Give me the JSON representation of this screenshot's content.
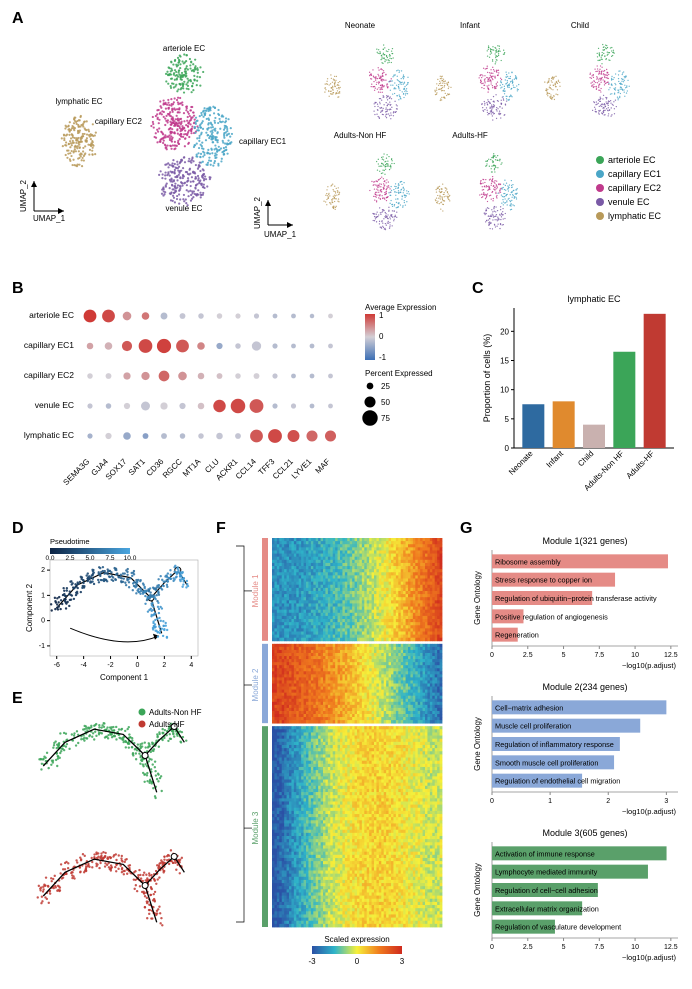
{
  "panelLabels": {
    "A": "A",
    "B": "B",
    "C": "C",
    "D": "D",
    "E": "E",
    "F": "F",
    "G": "G"
  },
  "celltypes": {
    "arteriole": {
      "name": "arteriole EC",
      "color": "#3ba558"
    },
    "capillary1": {
      "name": "capillary EC1",
      "color": "#4aa6c7"
    },
    "capillary2": {
      "name": "capillary EC2",
      "color": "#c03a8c"
    },
    "venule": {
      "name": "venule EC",
      "color": "#7a5aa6"
    },
    "lymphatic": {
      "name": "lymphatic EC",
      "color": "#b89a5a"
    }
  },
  "umap": {
    "x": "UMAP_1",
    "y": "UMAP_2"
  },
  "groups": {
    "neonate": {
      "name": "Neonate",
      "color": "#2e6aa0"
    },
    "infant": {
      "name": "Infant",
      "color": "#e08a2e"
    },
    "child": {
      "name": "Child",
      "color": "#c9b1af"
    },
    "nonhf": {
      "name": "Adults-Non HF",
      "color": "#3ba558"
    },
    "hf": {
      "name": "Adults-HF",
      "color": "#c03a32"
    }
  },
  "panelA": {
    "smallTitles": [
      "Neonate",
      "Infant",
      "Child",
      "Adults-Non HF",
      "Adults-HF"
    ]
  },
  "panelB": {
    "rows": [
      "arteriole EC",
      "capillary EC1",
      "capillary EC2",
      "venule EC",
      "lymphatic EC"
    ],
    "genes": [
      "SEMA3G",
      "GJA4",
      "SOX17",
      "SAT1",
      "CD36",
      "RGCC",
      "MT1A",
      "CLU",
      "ACKR1",
      "CCL14",
      "TFF3",
      "CCL21",
      "LYVE1",
      "MAF"
    ],
    "avgExpr": {
      "title": "Average Expression",
      "max": 1,
      "mid": 0,
      "min": -1,
      "high": "#cf3a36",
      "midc": "#d3cfd6",
      "low": "#3c6fb5"
    },
    "pctExpr": {
      "title": "Percent Expressed",
      "sizes": [
        25,
        50,
        75
      ]
    },
    "data": [
      [
        {
          "p": 60,
          "e": 1.0
        },
        {
          "p": 60,
          "e": 0.9
        },
        {
          "p": 36,
          "e": 0.4
        },
        {
          "p": 30,
          "e": 0.6
        },
        {
          "p": 26,
          "e": -0.2
        },
        {
          "p": 20,
          "e": -0.1
        },
        {
          "p": 18,
          "e": -0.1
        },
        {
          "p": 18,
          "e": 0.0
        },
        {
          "p": 16,
          "e": 0.0
        },
        {
          "p": 16,
          "e": -0.1
        },
        {
          "p": 14,
          "e": -0.2
        },
        {
          "p": 14,
          "e": -0.2
        },
        {
          "p": 12,
          "e": -0.2
        },
        {
          "p": 14,
          "e": 0.0
        }
      ],
      [
        {
          "p": 24,
          "e": 0.3
        },
        {
          "p": 30,
          "e": 0.2
        },
        {
          "p": 45,
          "e": 0.8
        },
        {
          "p": 65,
          "e": 0.9
        },
        {
          "p": 68,
          "e": 0.95
        },
        {
          "p": 60,
          "e": 0.8
        },
        {
          "p": 30,
          "e": 0.5
        },
        {
          "p": 22,
          "e": -0.4
        },
        {
          "p": 18,
          "e": -0.1
        },
        {
          "p": 40,
          "e": -0.1
        },
        {
          "p": 16,
          "e": -0.2
        },
        {
          "p": 14,
          "e": -0.2
        },
        {
          "p": 14,
          "e": -0.2
        },
        {
          "p": 14,
          "e": -0.1
        }
      ],
      [
        {
          "p": 18,
          "e": 0.0
        },
        {
          "p": 20,
          "e": 0.0
        },
        {
          "p": 28,
          "e": 0.3
        },
        {
          "p": 34,
          "e": 0.4
        },
        {
          "p": 48,
          "e": 0.7
        },
        {
          "p": 36,
          "e": 0.4
        },
        {
          "p": 24,
          "e": 0.2
        },
        {
          "p": 20,
          "e": 0.1
        },
        {
          "p": 18,
          "e": 0.0
        },
        {
          "p": 20,
          "e": 0.0
        },
        {
          "p": 16,
          "e": -0.1
        },
        {
          "p": 14,
          "e": -0.2
        },
        {
          "p": 14,
          "e": -0.2
        },
        {
          "p": 14,
          "e": -0.1
        }
      ],
      [
        {
          "p": 16,
          "e": -0.1
        },
        {
          "p": 18,
          "e": -0.2
        },
        {
          "p": 22,
          "e": 0.0
        },
        {
          "p": 38,
          "e": -0.1
        },
        {
          "p": 28,
          "e": 0.0
        },
        {
          "p": 22,
          "e": -0.1
        },
        {
          "p": 24,
          "e": 0.1
        },
        {
          "p": 58,
          "e": 0.9
        },
        {
          "p": 70,
          "e": 0.9
        },
        {
          "p": 66,
          "e": 0.8
        },
        {
          "p": 16,
          "e": -0.2
        },
        {
          "p": 16,
          "e": -0.1
        },
        {
          "p": 14,
          "e": -0.2
        },
        {
          "p": 14,
          "e": -0.1
        }
      ],
      [
        {
          "p": 16,
          "e": -0.3
        },
        {
          "p": 22,
          "e": 0.0
        },
        {
          "p": 30,
          "e": -0.4
        },
        {
          "p": 20,
          "e": -0.5
        },
        {
          "p": 20,
          "e": -0.2
        },
        {
          "p": 18,
          "e": -0.2
        },
        {
          "p": 18,
          "e": -0.1
        },
        {
          "p": 24,
          "e": -0.1
        },
        {
          "p": 20,
          "e": -0.1
        },
        {
          "p": 60,
          "e": 0.8
        },
        {
          "p": 66,
          "e": 0.9
        },
        {
          "p": 55,
          "e": 0.85
        },
        {
          "p": 50,
          "e": 0.7
        },
        {
          "p": 50,
          "e": 0.75
        }
      ]
    ]
  },
  "panelC": {
    "title": "lymphatic EC",
    "yLabel": "Proportion of cells (%)",
    "yMax": 24,
    "yTicks": [
      0,
      5,
      10,
      15,
      20
    ],
    "bars": [
      {
        "label": "Neonate",
        "value": 7.5,
        "color": "#2e6aa0"
      },
      {
        "label": "Infant",
        "value": 8.0,
        "color": "#e08a2e"
      },
      {
        "label": "Child",
        "value": 4.0,
        "color": "#c9b1af"
      },
      {
        "label": "Adults-Non HF",
        "value": 16.5,
        "color": "#3ba558"
      },
      {
        "label": "Adults-HF",
        "value": 23.0,
        "color": "#c03a32"
      }
    ]
  },
  "panelD": {
    "xLabel": "Component 1",
    "yLabel": "Component 2",
    "pseudoTitle": "Pseudotime",
    "pseudoTicks": [
      "0.0",
      "2.5",
      "5.0",
      "7.5",
      "10.0"
    ],
    "gradient": {
      "low": "#0c2344",
      "high": "#4aa6e0"
    },
    "xTicks": [
      -6,
      -4,
      -2,
      0,
      2,
      4
    ],
    "yTicks": [
      -1,
      0,
      1,
      2
    ]
  },
  "panelE": {
    "legend": [
      {
        "label": "Adults-Non HF",
        "color": "#3ba558"
      },
      {
        "label": "Adults-HF",
        "color": "#c03a32"
      }
    ]
  },
  "panelF": {
    "legendTitle": "Scaled expression",
    "min": -3,
    "max": 3,
    "grad": [
      "#2b50a5",
      "#2fb4c9",
      "#f6f03a",
      "#f07a1e",
      "#cf2a1e"
    ],
    "modules": [
      {
        "name": "Module 1",
        "color": "#e58b86"
      },
      {
        "name": "Module 2",
        "color": "#8aa8d8"
      },
      {
        "name": "Module 3",
        "color": "#5aa06a"
      }
    ],
    "modHeights": [
      0.27,
      0.21,
      0.52
    ]
  },
  "panelG": {
    "xLabel": "−log10(p.adjust)",
    "yLabel": "Gene Ontology",
    "modules": [
      {
        "title": "Module 1(321 genes)",
        "color": "#e58b86",
        "xmax": 13,
        "xTicks": [
          0.0,
          2.5,
          5.0,
          7.5,
          10.0,
          12.5
        ],
        "bars": [
          {
            "label": "Ribosome assembly",
            "v": 12.3
          },
          {
            "label": "Stress response to copper ion",
            "v": 8.6
          },
          {
            "label": "Regulation of ubiquitin−protein transferase activity",
            "v": 7.0
          },
          {
            "label": "Positive regulation of angiogenesis",
            "v": 2.2
          },
          {
            "label": "Regeneration",
            "v": 1.8
          }
        ]
      },
      {
        "title": "Module 2(234 genes)",
        "color": "#8aa8d8",
        "xmax": 3.2,
        "xTicks": [
          0,
          1,
          2,
          3
        ],
        "bars": [
          {
            "label": "Cell−matrix adhesion",
            "v": 3.0
          },
          {
            "label": "Muscle cell proliferation",
            "v": 2.55
          },
          {
            "label": "Regulation of inflammatory response",
            "v": 2.2
          },
          {
            "label": "Smooth muscle cell proliferation",
            "v": 2.1
          },
          {
            "label": "Regulation of endothelial cell migration",
            "v": 1.55
          }
        ]
      },
      {
        "title": "Module 3(605 genes)",
        "color": "#5aa06a",
        "xmax": 13,
        "xTicks": [
          0.0,
          2.5,
          5.0,
          7.5,
          10.0,
          12.5
        ],
        "bars": [
          {
            "label": "Activation of immune response",
            "v": 12.2
          },
          {
            "label": "Lymphocyte mediated immunity",
            "v": 10.9
          },
          {
            "label": "Regulation of cell−cell adhesion",
            "v": 7.4
          },
          {
            "label": "Extracellular matrix organization",
            "v": 6.3
          },
          {
            "label": "Regulation of vasculature development",
            "v": 4.4
          }
        ]
      }
    ]
  }
}
